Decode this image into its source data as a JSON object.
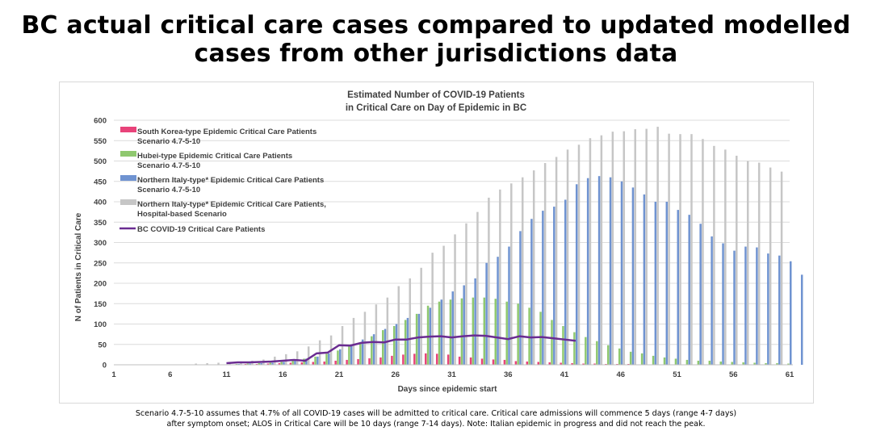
{
  "page": {
    "title_line1": "BC actual critical care cases compared to updated modelled",
    "title_line2": "cases from other jurisdictions data",
    "footnote_line1": "Scenario 4.7-5-10 assumes that 4.7% of all COVID-19 cases will be admitted to critical care. Critical care admissions will commence 5 days (range 4-7 days)",
    "footnote_line2": "after symptom onset; ALOS in Critical Care will be 10 days (range 7-14 days). Note: Italian epidemic in progress and did not reach the peak."
  },
  "chart_data": {
    "type": "bar",
    "title_line1": "Estimated Number of COVID-19 Patients",
    "title_line2": "in Critical Care on Day of Epidemic in BC",
    "xlabel": "Days since epidemic start",
    "ylabel": "N of Patients in Critical Care",
    "ylim": [
      0,
      600
    ],
    "yticks": [
      0,
      50,
      100,
      150,
      200,
      250,
      300,
      350,
      400,
      450,
      500,
      550,
      600
    ],
    "xlim": [
      1,
      61
    ],
    "xticks": [
      1,
      6,
      11,
      16,
      21,
      26,
      31,
      36,
      41,
      46,
      51,
      56,
      61
    ],
    "grid": true,
    "legend_position": "top-left",
    "colors": {
      "south_korea": "#e8437a",
      "hubei": "#8fc86f",
      "italy": "#6f93d1",
      "italy_hospital": "#c6c6c6",
      "bc": "#6a2c91",
      "grid": "#dcdcdc",
      "axis": "#bfbfbf"
    },
    "series": [
      {
        "name": "South Korea-type Epidemic Critical Care Patients",
        "name_line2": "Scenario 4.7-5-10",
        "key": "south_korea",
        "start_day": 1,
        "values": [
          0,
          0,
          0,
          0,
          0,
          0,
          0,
          0,
          0,
          0,
          1,
          1,
          2,
          2,
          3,
          4,
          5,
          6,
          7,
          8,
          10,
          12,
          14,
          16,
          18,
          22,
          25,
          27,
          28,
          27,
          25,
          20,
          18,
          15,
          13,
          12,
          9,
          8,
          7,
          6,
          5,
          4,
          3,
          3,
          2,
          2,
          2,
          1,
          1,
          1,
          1,
          1,
          1,
          1,
          1,
          1,
          0,
          0,
          0,
          0,
          0
        ]
      },
      {
        "name": "Hubei-type Epidemic Critical Care Patients",
        "name_line2": "Scenario 4.7-5-10",
        "key": "hubei",
        "start_day": 1,
        "values": [
          0,
          0,
          0,
          0,
          0,
          0,
          0,
          0,
          0,
          0,
          1,
          2,
          3,
          4,
          5,
          7,
          10,
          15,
          20,
          27,
          35,
          45,
          55,
          70,
          85,
          95,
          110,
          125,
          145,
          155,
          160,
          163,
          165,
          165,
          162,
          155,
          150,
          140,
          130,
          110,
          95,
          80,
          68,
          58,
          48,
          40,
          32,
          28,
          22,
          18,
          15,
          12,
          10,
          10,
          8,
          7,
          6,
          5,
          4,
          4,
          3
        ]
      },
      {
        "name": "Northern Italy-type* Epidemic Critical Care Patients",
        "name_line2": "Scenario 4.7-5-10",
        "key": "italy",
        "start_day": 1,
        "values": [
          0,
          0,
          0,
          0,
          0,
          0,
          0,
          0,
          0,
          0,
          1,
          2,
          3,
          4,
          5,
          7,
          10,
          15,
          20,
          28,
          38,
          50,
          62,
          75,
          88,
          100,
          115,
          125,
          140,
          160,
          180,
          195,
          212,
          250,
          265,
          290,
          328,
          358,
          378,
          388,
          405,
          443,
          458,
          463,
          460,
          450,
          435,
          418,
          400,
          400,
          380,
          368,
          346,
          315,
          298,
          280,
          290,
          288,
          273,
          268,
          254,
          221
        ]
      },
      {
        "name": "Northern Italy-type* Epidemic Critical Care Patients,",
        "name_line2": "Hospital-based Scenario",
        "key": "italy_hospital",
        "start_day": 1,
        "values": [
          0,
          0,
          0,
          0,
          0,
          0,
          0,
          3,
          4,
          5,
          7,
          8,
          10,
          13,
          20,
          26,
          33,
          45,
          60,
          72,
          95,
          115,
          130,
          148,
          165,
          193,
          212,
          238,
          275,
          292,
          320,
          347,
          375,
          410,
          430,
          445,
          460,
          477,
          495,
          510,
          528,
          540,
          556,
          563,
          572,
          573,
          578,
          579,
          584,
          567,
          566,
          566,
          554,
          537,
          528,
          513,
          500,
          496,
          484,
          474,
          0
        ]
      },
      {
        "name": "BC COVID-19 Critical Care Patients",
        "key": "bc",
        "start_day": 11,
        "values": [
          4,
          6,
          6,
          7,
          8,
          10,
          12,
          10,
          28,
          30,
          48,
          47,
          54,
          56,
          55,
          62,
          62,
          67,
          69,
          70,
          67,
          70,
          72,
          71,
          67,
          63,
          70,
          67,
          68,
          65,
          62,
          59
        ]
      }
    ]
  }
}
